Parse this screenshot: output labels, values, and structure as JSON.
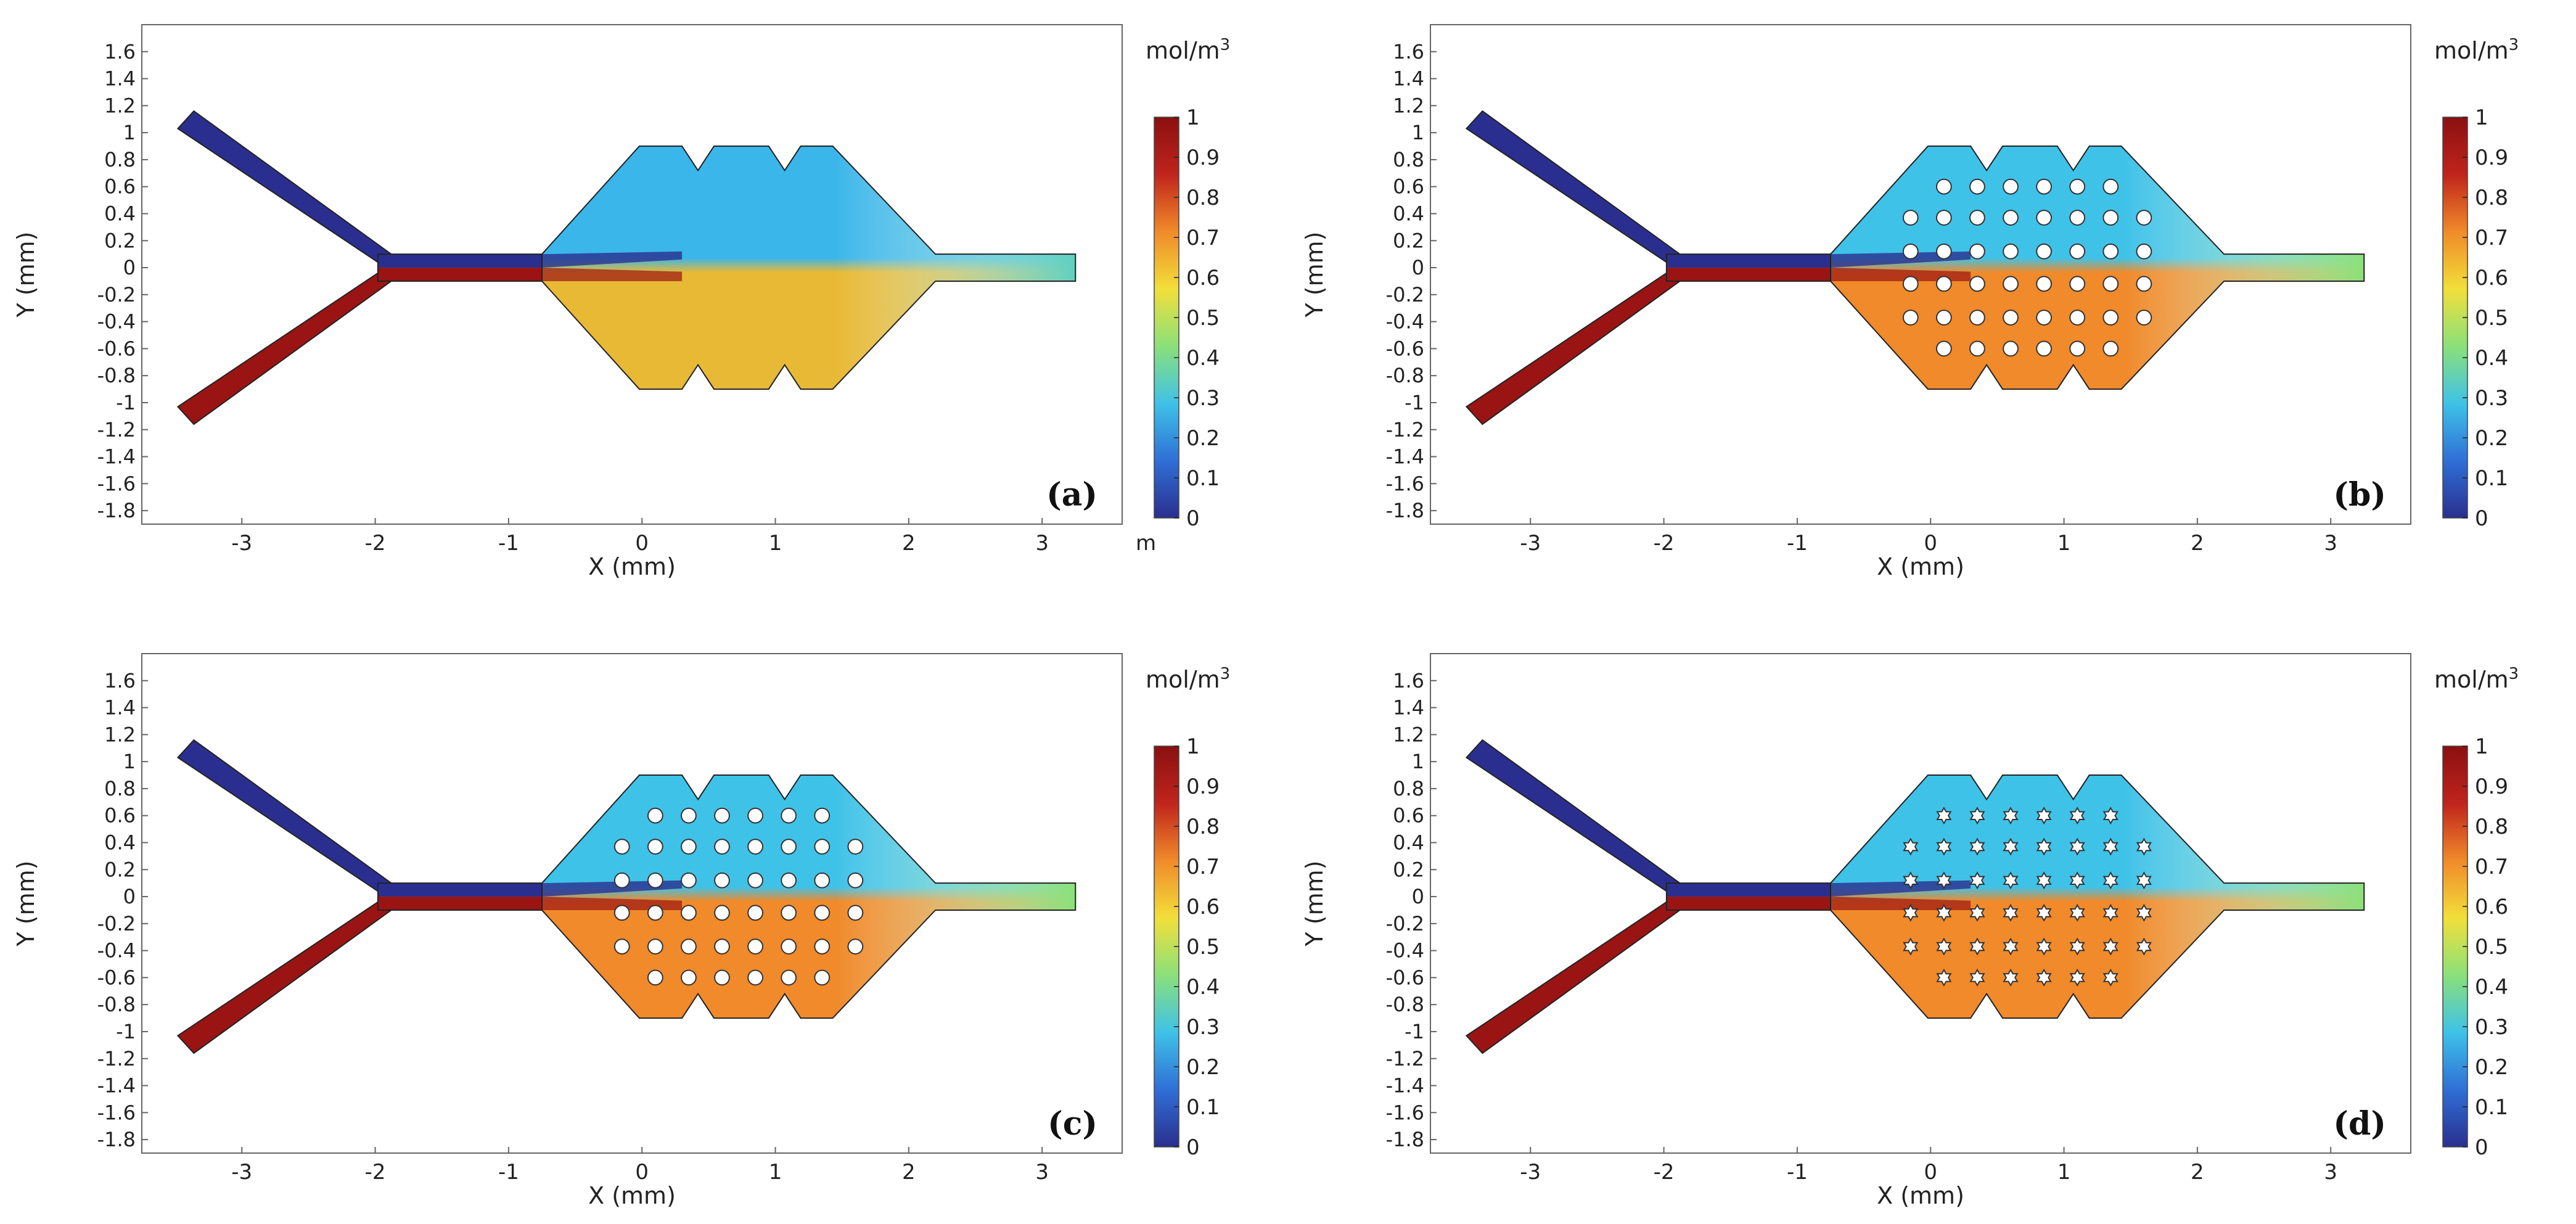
{
  "chart_data": {
    "type": "heatmap",
    "description_type": "concentration field (2D simulation)",
    "shared": {
      "xlabel": "X (mm)",
      "ylabel": "Y (mm)",
      "xlim": [
        -3.75,
        3.6
      ],
      "ylim": [
        -1.9,
        1.8
      ],
      "xticks": [
        -3,
        -2,
        -1,
        0,
        1,
        2,
        3
      ],
      "yticks": [
        1.6,
        1.4,
        1.2,
        1,
        0.8,
        0.6,
        0.4,
        0.2,
        0,
        -0.2,
        -0.4,
        -0.6,
        -0.8,
        -1,
        -1.2,
        -1.4,
        -1.6,
        -1.8
      ],
      "colorbar": {
        "unit_main": "mol/m",
        "unit_sup": "3",
        "range": [
          0,
          1
        ],
        "ticks": [
          1,
          0.9,
          0.8,
          0.7,
          0.6,
          0.5,
          0.4,
          0.3,
          0.2,
          0.1,
          0
        ],
        "colormap": [
          "#2a2f8f",
          "#2f6fd6",
          "#3fc2e8",
          "#8be07a",
          "#f2df3a",
          "#f08a2a",
          "#c0241c",
          "#8a1010"
        ]
      }
    },
    "panels": [
      {
        "id": "a",
        "label": "(a)",
        "obstacles": "none",
        "axis_extra": "m",
        "field_note": "upper half ~0.35, lower half ~0.6-0.7 with sharp interface near y=0",
        "colors": {
          "upper_inlet": "#2a2f8f",
          "lower_inlet": "#9a1414",
          "upper_chamber": "#3bb6ea",
          "lower_chamber": "#e8b935",
          "outlet": "#5fd0c0"
        }
      },
      {
        "id": "b",
        "label": "(b)",
        "obstacles": "circles",
        "field_note": "gradient from blue/red at entrance to uniform ~0.45 at outlet",
        "colors": {
          "upper_inlet": "#2a2f8f",
          "lower_inlet": "#9a1414",
          "upper_chamber": "#3fc2e8",
          "lower_chamber": "#f08a2a",
          "outlet": "#8be07a"
        }
      },
      {
        "id": "c",
        "label": "(c)",
        "obstacles": "circles",
        "field_note": "gradient from blue/red at entrance to uniform ~0.45 at outlet",
        "colors": {
          "upper_inlet": "#2a2f8f",
          "lower_inlet": "#9a1414",
          "upper_chamber": "#3fc2e8",
          "lower_chamber": "#f08a2a",
          "outlet": "#8be07a"
        }
      },
      {
        "id": "d",
        "label": "(d)",
        "obstacles": "stars",
        "field_note": "gradient from blue/red at entrance to uniform ~0.45 at outlet",
        "colors": {
          "upper_inlet": "#2a2f8f",
          "lower_inlet": "#9a1414",
          "upper_chamber": "#3fc2e8",
          "lower_chamber": "#f08a2a",
          "outlet": "#8be07a"
        }
      }
    ]
  }
}
